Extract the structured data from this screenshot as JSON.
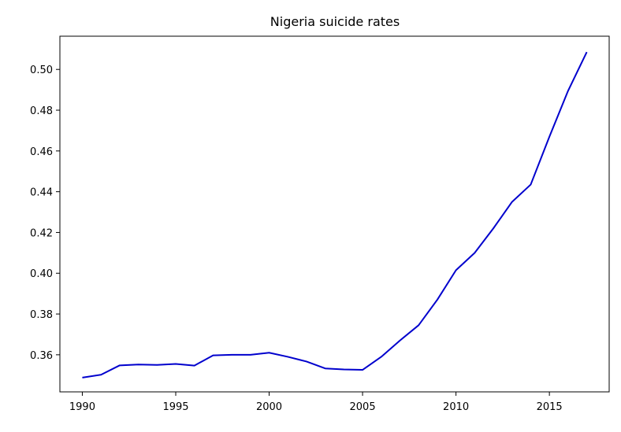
{
  "chart_data": {
    "type": "line",
    "title": "Nigeria suicide rates",
    "xlabel": "",
    "ylabel": "",
    "xlim": [
      1988.8,
      2018.2
    ],
    "ylim": [
      0.3418,
      0.5163
    ],
    "x_ticks": [
      1990,
      1995,
      2000,
      2005,
      2010,
      2015
    ],
    "x_tick_labels": [
      "1990",
      "1995",
      "2000",
      "2005",
      "2010",
      "2015"
    ],
    "y_ticks": [
      0.36,
      0.38,
      0.4,
      0.42,
      0.44,
      0.46,
      0.48,
      0.5
    ],
    "y_tick_labels": [
      "0.36",
      "0.38",
      "0.40",
      "0.42",
      "0.44",
      "0.46",
      "0.48",
      "0.50"
    ],
    "grid": false,
    "series": [
      {
        "color": "#0000cd",
        "x": [
          1990,
          1991,
          1992,
          1993,
          1994,
          1995,
          1996,
          1997,
          1998,
          1999,
          2000,
          2001,
          2002,
          2003,
          2004,
          2005,
          2006,
          2007,
          2008,
          2009,
          2010,
          2011,
          2012,
          2013,
          2014,
          2015,
          2016,
          2017
        ],
        "values": [
          0.3488,
          0.3502,
          0.3548,
          0.3552,
          0.355,
          0.3555,
          0.3547,
          0.3597,
          0.36,
          0.36,
          0.361,
          0.359,
          0.3567,
          0.3533,
          0.3528,
          0.3526,
          0.359,
          0.367,
          0.3745,
          0.387,
          0.4015,
          0.41,
          0.422,
          0.435,
          0.4435,
          0.467,
          0.4895,
          0.5085
        ]
      }
    ]
  }
}
